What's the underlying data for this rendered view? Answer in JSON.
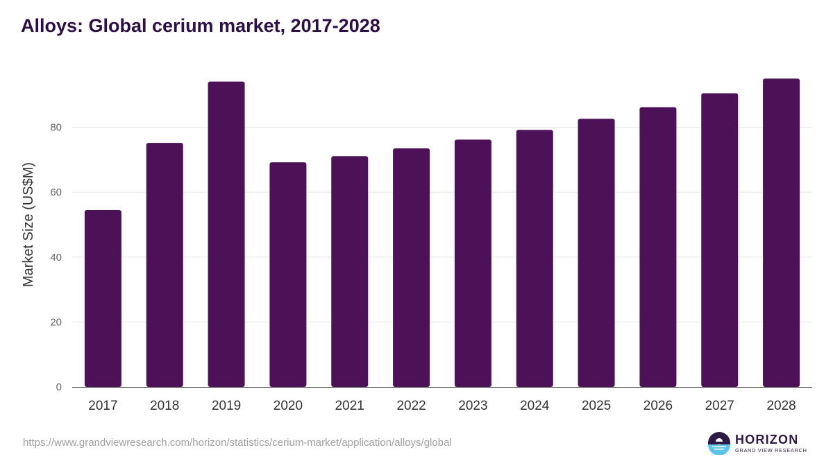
{
  "title": "Alloys: Global cerium market, 2017-2028",
  "source_url": "https://www.grandviewresearch.com/horizon/statistics/cerium-market/application/alloys/global",
  "logo": {
    "name": "HORIZON",
    "subtitle": "GRAND VIEW RESEARCH",
    "icon": "horizon-logo-icon"
  },
  "colors": {
    "bar": "#4d1158",
    "title": "#2e0f45",
    "grid": "#e6e6e6",
    "axis": "#333333",
    "logo_dark": "#2e1a47",
    "logo_light": "#5bc4ea"
  },
  "chart_data": {
    "type": "bar",
    "title": "Alloys: Global cerium market, 2017-2028",
    "xlabel": "",
    "ylabel": "Market Size (US$M)",
    "categories": [
      "2017",
      "2018",
      "2019",
      "2020",
      "2021",
      "2022",
      "2023",
      "2024",
      "2025",
      "2026",
      "2027",
      "2028"
    ],
    "values": [
      54.5,
      75.2,
      94.1,
      69.2,
      71.1,
      73.5,
      76.2,
      79.2,
      82.6,
      86.2,
      90.5,
      95.0
    ],
    "yticks": [
      0,
      20,
      40,
      60,
      80
    ],
    "ylim": [
      0,
      100
    ],
    "grid": true,
    "legend": "none"
  }
}
